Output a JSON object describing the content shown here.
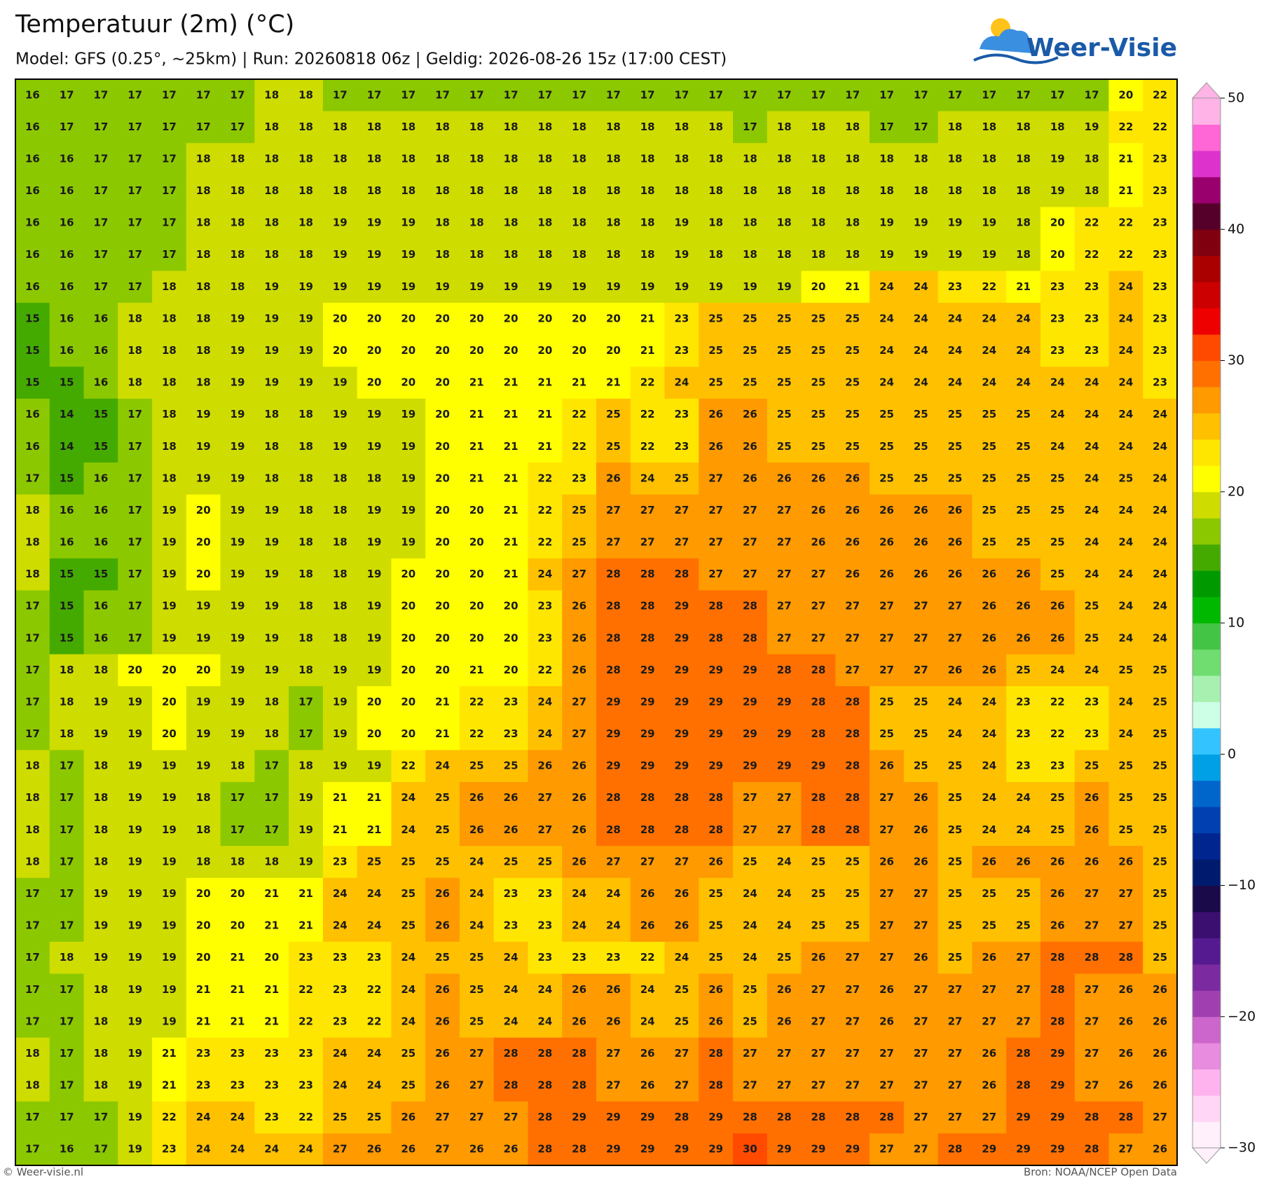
{
  "map": {
    "title": "Temperatuur (2m) (°C)",
    "subtitle": "Model: GFS (0.25°, ~25km)  |  Run: 20260818 06z  |  Geldig: 2026-08-26 15z (17:00 CEST)",
    "logo": "Weer-Visie",
    "footer_left": "© Weer-visie.nl",
    "footer_right": "Bron: NOAA/NCEP Open Data",
    "colorbar": {
      "min": -30,
      "max": 50,
      "colors": [
        "#fff0fb",
        "#ffd6f5",
        "#ffb3ee",
        "#e88ce0",
        "#cc66cc",
        "#a040b0",
        "#7b2aa0",
        "#551a90",
        "#3a0f70",
        "#1a0a4a",
        "#001a6e",
        "#00258f",
        "#0040b0",
        "#0066cc",
        "#00a0e6",
        "#33c4ff",
        "#ccffe6",
        "#a8f0b0",
        "#70dd70",
        "#44c444",
        "#00b800",
        "#009a00",
        "#44aa00",
        "#8cc800",
        "#cfdc00",
        "#ffff00",
        "#ffe600",
        "#ffc000",
        "#ff9a00",
        "#ff7000",
        "#ff4a00",
        "#ee0000",
        "#cc0000",
        "#aa0000",
        "#800010",
        "#55002a",
        "#99006e",
        "#dd33cc",
        "#ff66d6",
        "#ffb3e6"
      ],
      "ticks": [
        50,
        40,
        30,
        20,
        10,
        0,
        {
          "value": -10,
          "label": "−10"
        },
        {
          "value": -20,
          "label": "−20"
        },
        {
          "value": -30,
          "label": "−30"
        }
      ]
    },
    "grid": [
      [
        16,
        17,
        17,
        17,
        17,
        17,
        17,
        18,
        18,
        17,
        17,
        17,
        17,
        17,
        17,
        17,
        17,
        17,
        17,
        17,
        17,
        17,
        17,
        17,
        17,
        17,
        17,
        17,
        17,
        17,
        17,
        17,
        20,
        22
      ],
      [
        16,
        17,
        17,
        17,
        17,
        17,
        17,
        18,
        18,
        18,
        18,
        18,
        18,
        18,
        18,
        18,
        18,
        18,
        18,
        18,
        18,
        17,
        18,
        18,
        18,
        17,
        17,
        18,
        18,
        18,
        18,
        19,
        22,
        22
      ],
      [
        16,
        16,
        17,
        17,
        17,
        18,
        18,
        18,
        18,
        18,
        18,
        18,
        18,
        18,
        18,
        18,
        18,
        18,
        18,
        18,
        18,
        18,
        18,
        18,
        18,
        18,
        18,
        18,
        18,
        18,
        19,
        18,
        21,
        23
      ],
      [
        16,
        16,
        17,
        17,
        17,
        18,
        18,
        18,
        18,
        18,
        18,
        18,
        18,
        18,
        18,
        18,
        18,
        18,
        18,
        18,
        18,
        18,
        18,
        18,
        18,
        18,
        18,
        18,
        18,
        18,
        19,
        18,
        21,
        23
      ],
      [
        16,
        16,
        17,
        17,
        17,
        18,
        18,
        18,
        18,
        19,
        19,
        19,
        18,
        18,
        18,
        18,
        18,
        18,
        18,
        19,
        18,
        18,
        18,
        18,
        18,
        19,
        19,
        19,
        19,
        18,
        20,
        22,
        22,
        23
      ],
      [
        16,
        16,
        17,
        17,
        17,
        18,
        18,
        18,
        18,
        19,
        19,
        19,
        18,
        18,
        18,
        18,
        18,
        18,
        18,
        19,
        18,
        18,
        18,
        18,
        18,
        19,
        19,
        19,
        19,
        18,
        20,
        22,
        22,
        23
      ],
      [
        16,
        16,
        17,
        17,
        18,
        18,
        18,
        19,
        19,
        19,
        19,
        19,
        19,
        19,
        19,
        19,
        19,
        19,
        19,
        19,
        19,
        19,
        19,
        20,
        21,
        24,
        24,
        23,
        22,
        21,
        23,
        23,
        24,
        23
      ],
      [
        15,
        16,
        16,
        18,
        18,
        18,
        19,
        19,
        19,
        20,
        20,
        20,
        20,
        20,
        20,
        20,
        20,
        20,
        21,
        23,
        25,
        25,
        25,
        25,
        25,
        24,
        24,
        24,
        24,
        24,
        23,
        23,
        24,
        23
      ],
      [
        15,
        16,
        16,
        18,
        18,
        18,
        19,
        19,
        19,
        20,
        20,
        20,
        20,
        20,
        20,
        20,
        20,
        20,
        21,
        23,
        25,
        25,
        25,
        25,
        25,
        24,
        24,
        24,
        24,
        24,
        23,
        23,
        24,
        23
      ],
      [
        15,
        15,
        16,
        18,
        18,
        18,
        19,
        19,
        19,
        19,
        20,
        20,
        20,
        21,
        21,
        21,
        21,
        21,
        22,
        24,
        25,
        25,
        25,
        25,
        25,
        24,
        24,
        24,
        24,
        24,
        24,
        24,
        24,
        23
      ],
      [
        16,
        14,
        15,
        17,
        18,
        19,
        19,
        18,
        18,
        19,
        19,
        19,
        20,
        21,
        21,
        21,
        22,
        25,
        22,
        23,
        26,
        26,
        25,
        25,
        25,
        25,
        25,
        25,
        25,
        25,
        24,
        24,
        24,
        24
      ],
      [
        16,
        14,
        15,
        17,
        18,
        19,
        19,
        18,
        18,
        19,
        19,
        19,
        20,
        21,
        21,
        21,
        22,
        25,
        22,
        23,
        26,
        26,
        25,
        25,
        25,
        25,
        25,
        25,
        25,
        25,
        24,
        24,
        24,
        24
      ],
      [
        17,
        15,
        16,
        17,
        18,
        19,
        19,
        18,
        18,
        18,
        18,
        19,
        20,
        21,
        21,
        22,
        23,
        26,
        24,
        25,
        27,
        26,
        26,
        26,
        26,
        25,
        25,
        25,
        25,
        25,
        25,
        24,
        25,
        24
      ],
      [
        18,
        16,
        16,
        17,
        19,
        20,
        19,
        19,
        18,
        18,
        19,
        19,
        20,
        20,
        21,
        22,
        25,
        27,
        27,
        27,
        27,
        27,
        27,
        26,
        26,
        26,
        26,
        26,
        25,
        25,
        25,
        24,
        24,
        24
      ],
      [
        18,
        16,
        16,
        17,
        19,
        20,
        19,
        19,
        18,
        18,
        19,
        19,
        20,
        20,
        21,
        22,
        25,
        27,
        27,
        27,
        27,
        27,
        27,
        26,
        26,
        26,
        26,
        26,
        25,
        25,
        25,
        24,
        24,
        24
      ],
      [
        18,
        15,
        15,
        17,
        19,
        20,
        19,
        19,
        18,
        18,
        19,
        20,
        20,
        20,
        21,
        24,
        27,
        28,
        28,
        28,
        27,
        27,
        27,
        27,
        26,
        26,
        26,
        26,
        26,
        26,
        25,
        24,
        24,
        24
      ],
      [
        17,
        15,
        16,
        17,
        19,
        19,
        19,
        19,
        18,
        18,
        19,
        20,
        20,
        20,
        20,
        23,
        26,
        28,
        28,
        29,
        28,
        28,
        27,
        27,
        27,
        27,
        27,
        27,
        26,
        26,
        26,
        25,
        24,
        24
      ],
      [
        17,
        15,
        16,
        17,
        19,
        19,
        19,
        19,
        18,
        18,
        19,
        20,
        20,
        20,
        20,
        23,
        26,
        28,
        28,
        29,
        28,
        28,
        27,
        27,
        27,
        27,
        27,
        27,
        26,
        26,
        26,
        25,
        24,
        24
      ],
      [
        17,
        18,
        18,
        20,
        20,
        20,
        19,
        19,
        18,
        19,
        19,
        20,
        20,
        21,
        20,
        22,
        26,
        28,
        29,
        29,
        29,
        29,
        28,
        28,
        27,
        27,
        27,
        26,
        26,
        25,
        24,
        24,
        25,
        25
      ],
      [
        17,
        18,
        19,
        19,
        20,
        19,
        19,
        18,
        17,
        19,
        20,
        20,
        21,
        22,
        23,
        24,
        27,
        29,
        29,
        29,
        29,
        29,
        29,
        28,
        28,
        25,
        25,
        24,
        24,
        23,
        22,
        23,
        24,
        25
      ],
      [
        17,
        18,
        19,
        19,
        20,
        19,
        19,
        18,
        17,
        19,
        20,
        20,
        21,
        22,
        23,
        24,
        27,
        29,
        29,
        29,
        29,
        29,
        29,
        28,
        28,
        25,
        25,
        24,
        24,
        23,
        22,
        23,
        24,
        25
      ],
      [
        18,
        17,
        18,
        19,
        19,
        19,
        18,
        17,
        18,
        19,
        19,
        22,
        24,
        25,
        25,
        26,
        26,
        29,
        29,
        29,
        29,
        29,
        29,
        29,
        28,
        26,
        25,
        25,
        24,
        23,
        23,
        25,
        25,
        25
      ],
      [
        18,
        17,
        18,
        19,
        19,
        18,
        17,
        17,
        19,
        21,
        21,
        24,
        25,
        26,
        26,
        27,
        26,
        28,
        28,
        28,
        28,
        27,
        27,
        28,
        28,
        27,
        26,
        25,
        24,
        24,
        25,
        26,
        25,
        25
      ],
      [
        18,
        17,
        18,
        19,
        19,
        18,
        17,
        17,
        19,
        21,
        21,
        24,
        25,
        26,
        26,
        27,
        26,
        28,
        28,
        28,
        28,
        27,
        27,
        28,
        28,
        27,
        26,
        25,
        24,
        24,
        25,
        26,
        25,
        25
      ],
      [
        18,
        17,
        18,
        19,
        19,
        18,
        18,
        18,
        19,
        23,
        25,
        25,
        25,
        24,
        25,
        25,
        26,
        27,
        27,
        27,
        26,
        25,
        24,
        25,
        25,
        26,
        26,
        25,
        26,
        26,
        26,
        26,
        26,
        25
      ],
      [
        17,
        17,
        19,
        19,
        19,
        20,
        20,
        21,
        21,
        24,
        24,
        25,
        26,
        24,
        23,
        23,
        24,
        24,
        26,
        26,
        25,
        24,
        24,
        25,
        25,
        27,
        27,
        25,
        25,
        25,
        26,
        27,
        27,
        25
      ],
      [
        17,
        17,
        19,
        19,
        19,
        20,
        20,
        21,
        21,
        24,
        24,
        25,
        26,
        24,
        23,
        23,
        24,
        24,
        26,
        26,
        25,
        24,
        24,
        25,
        25,
        27,
        27,
        25,
        25,
        25,
        26,
        27,
        27,
        25
      ],
      [
        17,
        18,
        19,
        19,
        19,
        20,
        21,
        20,
        23,
        23,
        23,
        24,
        25,
        25,
        24,
        23,
        23,
        23,
        22,
        24,
        25,
        24,
        25,
        26,
        27,
        27,
        26,
        25,
        26,
        27,
        28,
        28,
        28,
        25
      ],
      [
        17,
        17,
        18,
        19,
        19,
        21,
        21,
        21,
        22,
        23,
        22,
        24,
        26,
        25,
        24,
        24,
        26,
        26,
        24,
        25,
        26,
        25,
        26,
        27,
        27,
        26,
        27,
        27,
        27,
        27,
        28,
        27,
        26,
        26
      ],
      [
        17,
        17,
        18,
        19,
        19,
        21,
        21,
        21,
        22,
        23,
        22,
        24,
        26,
        25,
        24,
        24,
        26,
        26,
        24,
        25,
        26,
        25,
        26,
        27,
        27,
        26,
        27,
        27,
        27,
        27,
        28,
        27,
        26,
        26
      ],
      [
        18,
        17,
        18,
        19,
        21,
        23,
        23,
        23,
        23,
        24,
        24,
        25,
        26,
        27,
        28,
        28,
        28,
        27,
        26,
        27,
        28,
        27,
        27,
        27,
        27,
        27,
        27,
        27,
        26,
        28,
        29,
        27,
        26,
        26
      ],
      [
        18,
        17,
        18,
        19,
        21,
        23,
        23,
        23,
        23,
        24,
        24,
        25,
        26,
        27,
        28,
        28,
        28,
        27,
        26,
        27,
        28,
        27,
        27,
        27,
        27,
        27,
        27,
        27,
        26,
        28,
        29,
        27,
        26,
        26
      ],
      [
        17,
        17,
        17,
        19,
        22,
        24,
        24,
        23,
        22,
        25,
        25,
        26,
        27,
        27,
        27,
        28,
        29,
        29,
        29,
        28,
        29,
        28,
        28,
        28,
        28,
        28,
        27,
        27,
        27,
        29,
        29,
        28,
        28,
        27
      ],
      [
        17,
        16,
        17,
        19,
        23,
        24,
        24,
        24,
        24,
        27,
        26,
        26,
        27,
        26,
        26,
        28,
        28,
        29,
        29,
        29,
        29,
        30,
        29,
        29,
        29,
        27,
        27,
        28,
        29,
        29,
        29,
        28,
        27,
        26
      ]
    ]
  }
}
